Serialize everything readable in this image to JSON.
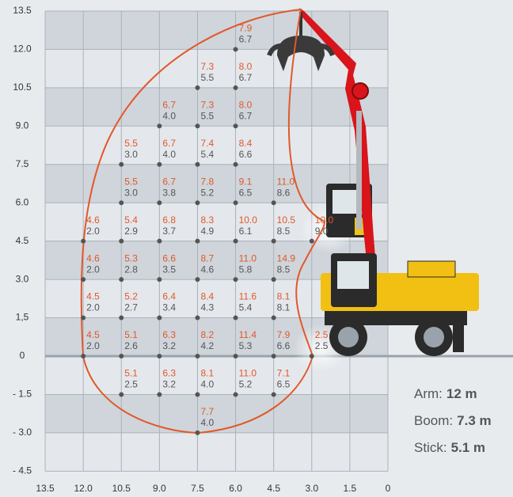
{
  "x_ticks": [
    {
      "value": 13.5,
      "label": "13.5"
    },
    {
      "value": 12,
      "label": "12.0"
    },
    {
      "value": 10.5,
      "label": "10.5"
    },
    {
      "value": 9,
      "label": "9.0"
    },
    {
      "value": 7.5,
      "label": "7.5"
    },
    {
      "value": 6,
      "label": "6.0"
    },
    {
      "value": 4.5,
      "label": "4.5"
    },
    {
      "value": 3,
      "label": "3.0"
    },
    {
      "value": 1.5,
      "label": "1.5"
    },
    {
      "value": 0,
      "label": "0"
    }
  ],
  "y_ticks": [
    {
      "value": 13.5,
      "label": "13.5"
    },
    {
      "value": 12,
      "label": "12.0"
    },
    {
      "value": 10.5,
      "label": "10.5"
    },
    {
      "value": 9,
      "label": "9.0"
    },
    {
      "value": 7.5,
      "label": "7.5"
    },
    {
      "value": 6,
      "label": "6.0"
    },
    {
      "value": 4.5,
      "label": "4.5"
    },
    {
      "value": 3,
      "label": "3.0"
    },
    {
      "value": 1.5,
      "label": "1,5"
    },
    {
      "value": 0,
      "label": "0"
    },
    {
      "value": -1.5,
      "label": "- 1.5"
    },
    {
      "value": -3,
      "label": "- 3.0"
    },
    {
      "value": -4.5,
      "label": "- 4.5"
    }
  ],
  "points": [
    {
      "x": 6,
      "y": 12,
      "labels": [
        "7.9",
        "6.7"
      ]
    },
    {
      "x": 7.5,
      "y": 10.5,
      "labels": [
        "7.3",
        "5.5"
      ]
    },
    {
      "x": 6,
      "y": 10.5,
      "labels": [
        "8.0",
        "6.7"
      ]
    },
    {
      "x": 9,
      "y": 9,
      "labels": [
        "6.7",
        "4.0"
      ]
    },
    {
      "x": 7.5,
      "y": 9,
      "labels": [
        "7.3",
        "5.5"
      ]
    },
    {
      "x": 6,
      "y": 9,
      "labels": [
        "8.0",
        "6.7"
      ]
    },
    {
      "x": 10.5,
      "y": 7.5,
      "labels": [
        "5.5",
        "3.0"
      ]
    },
    {
      "x": 9,
      "y": 7.5,
      "labels": [
        "6.7",
        "4.0"
      ]
    },
    {
      "x": 7.5,
      "y": 7.5,
      "labels": [
        "7.4",
        "5.4"
      ]
    },
    {
      "x": 6,
      "y": 7.5,
      "labels": [
        "8.4",
        "6.6"
      ]
    },
    {
      "x": 10.5,
      "y": 6,
      "labels": [
        "5.5",
        "3.0"
      ]
    },
    {
      "x": 9,
      "y": 6,
      "labels": [
        "6.7",
        "3.8"
      ]
    },
    {
      "x": 7.5,
      "y": 6,
      "labels": [
        "7.8",
        "5.2"
      ]
    },
    {
      "x": 6,
      "y": 6,
      "labels": [
        "9.1",
        "6.5"
      ]
    },
    {
      "x": 4.5,
      "y": 6,
      "labels": [
        "11.0",
        "8.6"
      ]
    },
    {
      "x": 12,
      "y": 4.5,
      "labels": [
        "4.6",
        "2.0"
      ]
    },
    {
      "x": 10.5,
      "y": 4.5,
      "labels": [
        "5.4",
        "2.9"
      ]
    },
    {
      "x": 9,
      "y": 4.5,
      "labels": [
        "6.8",
        "3.7"
      ]
    },
    {
      "x": 7.5,
      "y": 4.5,
      "labels": [
        "8.3",
        "4.9"
      ]
    },
    {
      "x": 6,
      "y": 4.5,
      "labels": [
        "10.0",
        "6.1"
      ]
    },
    {
      "x": 4.5,
      "y": 4.5,
      "labels": [
        "10.5",
        "8.5"
      ]
    },
    {
      "x": 3,
      "y": 4.5,
      "labels": [
        "10.0",
        "9.0"
      ]
    },
    {
      "x": 12,
      "y": 3,
      "labels": [
        "4.6",
        "2.0"
      ]
    },
    {
      "x": 10.5,
      "y": 3,
      "labels": [
        "5.3",
        "2.8"
      ]
    },
    {
      "x": 9,
      "y": 3,
      "labels": [
        "6.6",
        "3.5"
      ]
    },
    {
      "x": 7.5,
      "y": 3,
      "labels": [
        "8.7",
        "4.6"
      ]
    },
    {
      "x": 6,
      "y": 3,
      "labels": [
        "11.0",
        "5.8"
      ]
    },
    {
      "x": 4.5,
      "y": 3,
      "labels": [
        "14.9",
        "8.5"
      ]
    },
    {
      "x": 12,
      "y": 1.5,
      "labels": [
        "4.5",
        "2.0"
      ]
    },
    {
      "x": 10.5,
      "y": 1.5,
      "labels": [
        "5.2",
        "2.7"
      ]
    },
    {
      "x": 9,
      "y": 1.5,
      "labels": [
        "6.4",
        "3.4"
      ]
    },
    {
      "x": 7.5,
      "y": 1.5,
      "labels": [
        "8.4",
        "4.3"
      ]
    },
    {
      "x": 6,
      "y": 1.5,
      "labels": [
        "11.6",
        "5.4"
      ]
    },
    {
      "x": 4.5,
      "y": 1.5,
      "labels": [
        "8.1",
        "8.1"
      ]
    },
    {
      "x": 12,
      "y": 0,
      "labels": [
        "4.5",
        "2.0"
      ]
    },
    {
      "x": 10.5,
      "y": 0,
      "labels": [
        "5.1",
        "2.6"
      ]
    },
    {
      "x": 9,
      "y": 0,
      "labels": [
        "6.3",
        "3.2"
      ]
    },
    {
      "x": 7.5,
      "y": 0,
      "labels": [
        "8.2",
        "4.2"
      ]
    },
    {
      "x": 6,
      "y": 0,
      "labels": [
        "11.4",
        "5.3"
      ]
    },
    {
      "x": 4.5,
      "y": 0,
      "labels": [
        "7.9",
        "6.6"
      ]
    },
    {
      "x": 3,
      "y": 0,
      "labels": [
        "2.5",
        "2.5"
      ]
    },
    {
      "x": 10.5,
      "y": -1.5,
      "labels": [
        "5.1",
        "2.5"
      ]
    },
    {
      "x": 9,
      "y": -1.5,
      "labels": [
        "6.3",
        "3.2"
      ]
    },
    {
      "x": 7.5,
      "y": -1.5,
      "labels": [
        "8.1",
        "4.0"
      ]
    },
    {
      "x": 6,
      "y": -1.5,
      "labels": [
        "11.0",
        "5.2"
      ]
    },
    {
      "x": 4.5,
      "y": -1.5,
      "labels": [
        "7.1",
        "6.5"
      ]
    },
    {
      "x": 7.5,
      "y": -3,
      "labels": [
        "7.7",
        "4.0"
      ]
    }
  ],
  "specs": [
    {
      "label": "Arm:",
      "value": "12 m"
    },
    {
      "label": "Boom:",
      "value": "7.3 m"
    },
    {
      "label": "Stick:",
      "value": "5.1 m"
    }
  ]
}
